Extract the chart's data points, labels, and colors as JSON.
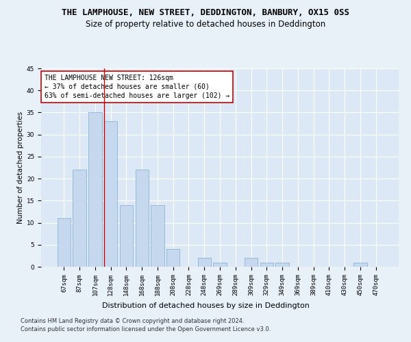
{
  "title": "THE LAMPHOUSE, NEW STREET, DEDDINGTON, BANBURY, OX15 0SS",
  "subtitle": "Size of property relative to detached houses in Deddington",
  "xlabel": "Distribution of detached houses by size in Deddington",
  "ylabel": "Number of detached properties",
  "categories": [
    "67sqm",
    "87sqm",
    "107sqm",
    "128sqm",
    "148sqm",
    "168sqm",
    "188sqm",
    "208sqm",
    "228sqm",
    "248sqm",
    "269sqm",
    "289sqm",
    "309sqm",
    "329sqm",
    "349sqm",
    "369sqm",
    "389sqm",
    "410sqm",
    "430sqm",
    "450sqm",
    "470sqm"
  ],
  "values": [
    11,
    22,
    35,
    33,
    14,
    22,
    14,
    4,
    0,
    2,
    1,
    0,
    2,
    1,
    1,
    0,
    0,
    0,
    0,
    1,
    0
  ],
  "bar_color": "#c5d8ed",
  "bar_edge_color": "#8ab4d4",
  "background_color": "#e8f0f8",
  "plot_bg_color": "#dce8f5",
  "grid_color": "#ffffff",
  "vline_x_index": 3,
  "vline_color": "#cc0000",
  "annotation_title": "THE LAMPHOUSE NEW STREET: 126sqm",
  "annotation_line1": "← 37% of detached houses are smaller (60)",
  "annotation_line2": "63% of semi-detached houses are larger (102) →",
  "annotation_box_color": "#ffffff",
  "annotation_box_edge": "#cc0000",
  "ylim": [
    0,
    45
  ],
  "yticks": [
    0,
    5,
    10,
    15,
    20,
    25,
    30,
    35,
    40,
    45
  ],
  "footer1": "Contains HM Land Registry data © Crown copyright and database right 2024.",
  "footer2": "Contains public sector information licensed under the Open Government Licence v3.0.",
  "title_fontsize": 9,
  "subtitle_fontsize": 8.5,
  "annotation_fontsize": 7,
  "tick_fontsize": 6.5,
  "ylabel_fontsize": 7.5,
  "xlabel_fontsize": 8,
  "footer_fontsize": 6
}
